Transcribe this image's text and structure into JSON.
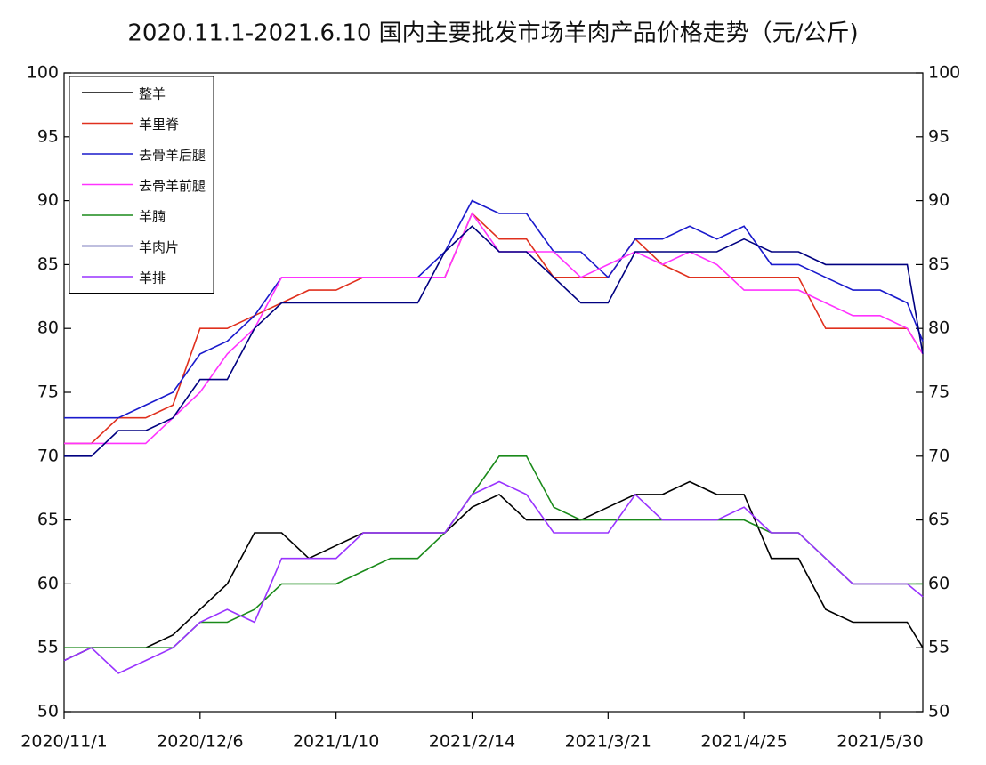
{
  "chart_data": {
    "type": "line",
    "title": "2020.11.1-2021.6.10 国内主要批发市场羊肉产品价格走势（元/公斤)",
    "x": [
      "2020/11/1",
      "2020/11/8",
      "2020/11/15",
      "2020/11/22",
      "2020/11/29",
      "2020/12/6",
      "2020/12/13",
      "2020/12/20",
      "2020/12/27",
      "2021/1/3",
      "2021/1/10",
      "2021/1/17",
      "2021/1/24",
      "2021/1/31",
      "2021/2/7",
      "2021/2/14",
      "2021/2/21",
      "2021/2/28",
      "2021/3/7",
      "2021/3/14",
      "2021/3/21",
      "2021/3/28",
      "2021/4/4",
      "2021/4/11",
      "2021/4/18",
      "2021/4/25",
      "2021/5/2",
      "2021/5/9",
      "2021/5/16",
      "2021/5/23",
      "2021/5/30",
      "2021/6/6",
      "2021/6/10"
    ],
    "xlim": [
      "2020/11/1",
      "2021/6/10"
    ],
    "xticks": [
      "2020/11/1",
      "2020/12/6",
      "2021/1/10",
      "2021/2/14",
      "2021/3/21",
      "2021/4/25",
      "2021/5/30"
    ],
    "ylim": [
      50,
      100
    ],
    "yticks": [
      50,
      55,
      60,
      65,
      70,
      75,
      80,
      85,
      90,
      95,
      100
    ],
    "y2lim": [
      50,
      100
    ],
    "y2ticks": [
      50,
      55,
      60,
      65,
      70,
      75,
      80,
      85,
      90,
      95,
      100
    ],
    "grid": false,
    "legend": "upper left",
    "series": [
      {
        "name": "整羊",
        "color": "#000000",
        "values": [
          54,
          55,
          55,
          55,
          56,
          58,
          60,
          64,
          64,
          62,
          63,
          64,
          64,
          64,
          64,
          66,
          67,
          65,
          65,
          65,
          66,
          67,
          67,
          68,
          67,
          67,
          62,
          62,
          58,
          57,
          57,
          57,
          55
        ]
      },
      {
        "name": "羊里脊",
        "color": "#e0301e",
        "values": [
          71,
          71,
          73,
          73,
          74,
          80,
          80,
          81,
          82,
          83,
          83,
          84,
          84,
          84,
          84,
          89,
          87,
          87,
          84,
          84,
          84,
          87,
          85,
          84,
          84,
          84,
          84,
          84,
          80,
          80,
          80,
          80,
          78
        ]
      },
      {
        "name": "去骨羊后腿",
        "color": "#1a1acc",
        "values": [
          73,
          73,
          73,
          74,
          75,
          78,
          79,
          81,
          84,
          84,
          84,
          84,
          84,
          84,
          86,
          90,
          89,
          89,
          86,
          86,
          84,
          87,
          87,
          88,
          87,
          88,
          85,
          85,
          84,
          83,
          83,
          82,
          79
        ]
      },
      {
        "name": "去骨羊前腿",
        "color": "#ff33ff",
        "values": [
          71,
          71,
          71,
          71,
          73,
          75,
          78,
          80,
          84,
          84,
          84,
          84,
          84,
          84,
          84,
          89,
          86,
          86,
          86,
          84,
          85,
          86,
          85,
          86,
          85,
          83,
          83,
          83,
          82,
          81,
          81,
          80,
          78
        ]
      },
      {
        "name": "羊腩",
        "color": "#1a8a1a",
        "values": [
          55,
          55,
          55,
          55,
          55,
          57,
          57,
          58,
          60,
          60,
          60,
          61,
          62,
          62,
          64,
          67,
          70,
          70,
          66,
          65,
          65,
          65,
          65,
          65,
          65,
          65,
          64,
          64,
          62,
          60,
          60,
          60,
          60
        ]
      },
      {
        "name": "羊肉片",
        "color": "#000080",
        "values": [
          70,
          70,
          72,
          72,
          73,
          76,
          76,
          80,
          82,
          82,
          82,
          82,
          82,
          82,
          86,
          88,
          86,
          86,
          84,
          82,
          82,
          86,
          86,
          86,
          86,
          87,
          86,
          86,
          85,
          85,
          85,
          85,
          78
        ]
      },
      {
        "name": "羊排",
        "color": "#9933ff",
        "values": [
          54,
          55,
          53,
          54,
          55,
          57,
          58,
          57,
          62,
          62,
          62,
          64,
          64,
          64,
          64,
          67,
          68,
          67,
          64,
          64,
          64,
          67,
          65,
          65,
          65,
          66,
          64,
          64,
          62,
          60,
          60,
          60,
          59
        ]
      }
    ]
  }
}
